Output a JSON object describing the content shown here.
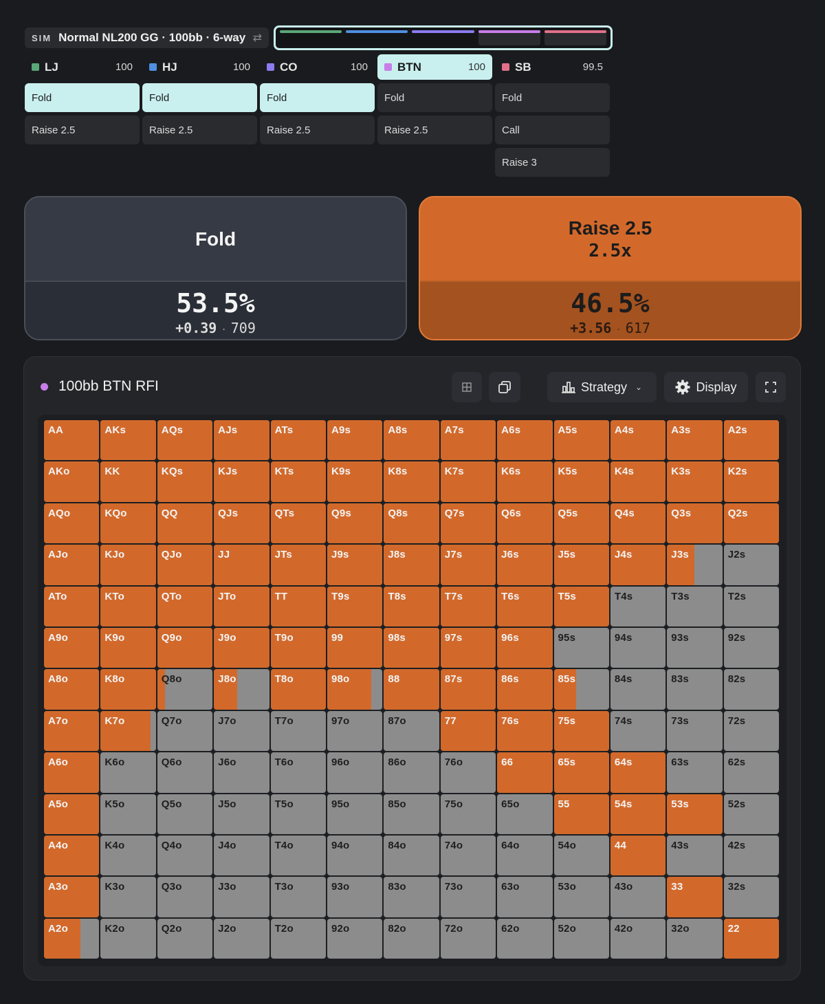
{
  "sim": {
    "tag": "SIM",
    "title": "Normal NL200 GG · 100bb · 6-way"
  },
  "colors": {
    "accent": "#c9f0ee",
    "raise": "#d2692b",
    "fold_cell": "#8c8c8c",
    "lj": "#5aa779",
    "hj": "#4f8fe0",
    "co": "#8b7cf0",
    "btn": "#c77ee8",
    "sb": "#e0708a"
  },
  "positions": [
    {
      "name": "LJ",
      "stack": "100",
      "actions": [
        "Fold",
        "Raise 2.5"
      ],
      "selected": 0
    },
    {
      "name": "HJ",
      "stack": "100",
      "actions": [
        "Fold",
        "Raise 2.5"
      ],
      "selected": 0
    },
    {
      "name": "CO",
      "stack": "100",
      "actions": [
        "Fold",
        "Raise 2.5"
      ],
      "selected": 0
    },
    {
      "name": "BTN",
      "stack": "100",
      "actions": [
        "Fold",
        "Raise 2.5"
      ],
      "selected": -1,
      "active": true
    },
    {
      "name": "SB",
      "stack": "99.5",
      "actions": [
        "Fold",
        "Call",
        "Raise 3"
      ],
      "selected": -1
    }
  ],
  "cards": {
    "fold": {
      "title": "Fold",
      "pct": "53.5%",
      "ev": "+0.39",
      "combos": "709"
    },
    "raise": {
      "title": "Raise 2.5",
      "size": "2.5x",
      "pct": "46.5%",
      "ev": "+3.56",
      "combos": "617"
    }
  },
  "panel": {
    "title": "100bb BTN RFI",
    "strategy_label": "Strategy",
    "display_label": "Display"
  },
  "grid": {
    "ranks": [
      "A",
      "K",
      "Q",
      "J",
      "T",
      "9",
      "8",
      "7",
      "6",
      "5",
      "4",
      "3",
      "2"
    ],
    "raise_freq": [
      [
        1,
        1,
        1,
        1,
        1,
        1,
        1,
        1,
        1,
        1,
        1,
        1,
        1
      ],
      [
        1,
        1,
        1,
        1,
        1,
        1,
        1,
        1,
        1,
        1,
        1,
        1,
        1
      ],
      [
        1,
        1,
        1,
        1,
        1,
        1,
        1,
        1,
        1,
        1,
        1,
        1,
        1
      ],
      [
        1,
        1,
        1,
        1,
        1,
        1,
        1,
        1,
        1,
        1,
        1,
        0.5,
        0
      ],
      [
        1,
        1,
        1,
        1,
        1,
        1,
        1,
        1,
        1,
        1,
        0,
        0,
        0
      ],
      [
        1,
        1,
        1,
        1,
        1,
        1,
        1,
        1,
        1,
        0,
        0,
        0,
        0
      ],
      [
        1,
        1,
        0.14,
        0.42,
        1,
        0.8,
        1,
        1,
        1,
        0.4,
        0,
        0,
        0
      ],
      [
        1,
        0.9,
        0,
        0,
        0,
        0,
        0,
        1,
        1,
        1,
        0,
        0,
        0
      ],
      [
        1,
        0,
        0,
        0,
        0,
        0,
        0,
        0,
        1,
        1,
        1,
        0,
        0
      ],
      [
        1,
        0,
        0,
        0,
        0,
        0,
        0,
        0,
        0,
        1,
        1,
        1,
        0
      ],
      [
        1,
        0,
        0,
        0,
        0,
        0,
        0,
        0,
        0,
        0,
        1,
        0,
        0
      ],
      [
        1,
        0,
        0,
        0,
        0,
        0,
        0,
        0,
        0,
        0,
        0,
        1,
        0
      ],
      [
        0.66,
        0,
        0,
        0,
        0,
        0,
        0,
        0,
        0,
        0,
        0,
        0,
        1
      ]
    ]
  }
}
